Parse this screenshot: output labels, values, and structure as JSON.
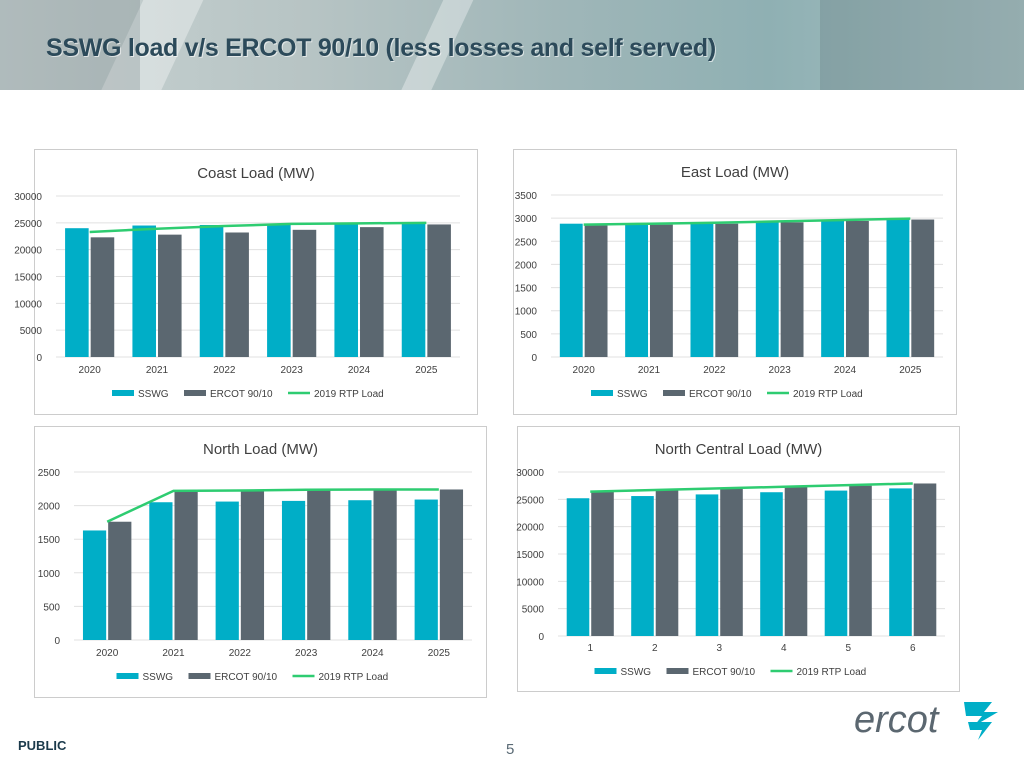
{
  "slide": {
    "title": "SSWG load v/s ERCOT 90/10 (less losses and self served)",
    "footer_label": "PUBLIC",
    "page_number": "5",
    "logo_text": "ercot"
  },
  "colors": {
    "sswg": "#00AEC7",
    "ercot": "#5B6770",
    "rtp": "#2ECC71",
    "title": "#2C4A5A"
  },
  "chart_data": [
    {
      "type": "bar",
      "title": "Coast Load (MW)",
      "categories": [
        "2020",
        "2021",
        "2022",
        "2023",
        "2024",
        "2025"
      ],
      "ylim": [
        0,
        30000
      ],
      "yticks": [
        0,
        5000,
        10000,
        15000,
        20000,
        25000,
        30000
      ],
      "grid": true,
      "legend_position": "bottom",
      "series": [
        {
          "name": "SSWG",
          "kind": "bar",
          "values": [
            24000,
            24500,
            24600,
            24700,
            24800,
            25000
          ]
        },
        {
          "name": "ERCOT 90/10",
          "kind": "bar",
          "values": [
            22300,
            22800,
            23200,
            23700,
            24200,
            24700
          ]
        },
        {
          "name": "2019 RTP Load",
          "kind": "line",
          "values": [
            23300,
            23900,
            24400,
            24800,
            24900,
            25000
          ]
        }
      ]
    },
    {
      "type": "bar",
      "title": "East Load (MW)",
      "categories": [
        "2020",
        "2021",
        "2022",
        "2023",
        "2024",
        "2025"
      ],
      "ylim": [
        0,
        3500
      ],
      "yticks": [
        0,
        500,
        1000,
        1500,
        2000,
        2500,
        3000,
        3500
      ],
      "grid": true,
      "legend_position": "bottom",
      "series": [
        {
          "name": "SSWG",
          "kind": "bar",
          "values": [
            2880,
            2890,
            2900,
            2930,
            2960,
            2990
          ]
        },
        {
          "name": "ERCOT 90/10",
          "kind": "bar",
          "values": [
            2840,
            2860,
            2880,
            2910,
            2940,
            2970
          ]
        },
        {
          "name": "2019 RTP Load",
          "kind": "line",
          "values": [
            2860,
            2880,
            2900,
            2930,
            2960,
            2990
          ]
        }
      ]
    },
    {
      "type": "bar",
      "title": "North Load (MW)",
      "categories": [
        "2020",
        "2021",
        "2022",
        "2023",
        "2024",
        "2025"
      ],
      "ylim": [
        0,
        2500
      ],
      "yticks": [
        0,
        500,
        1000,
        1500,
        2000,
        2500
      ],
      "grid": true,
      "legend_position": "bottom",
      "series": [
        {
          "name": "SSWG",
          "kind": "bar",
          "values": [
            1630,
            2050,
            2060,
            2070,
            2080,
            2090
          ]
        },
        {
          "name": "ERCOT 90/10",
          "kind": "bar",
          "values": [
            1760,
            2220,
            2220,
            2230,
            2235,
            2240
          ]
        },
        {
          "name": "2019 RTP Load",
          "kind": "line",
          "values": [
            1760,
            2220,
            2225,
            2235,
            2240,
            2240
          ]
        }
      ]
    },
    {
      "type": "bar",
      "title": "North Central Load (MW)",
      "categories": [
        "1",
        "2",
        "3",
        "4",
        "5",
        "6"
      ],
      "ylim": [
        0,
        30000
      ],
      "yticks": [
        0,
        5000,
        10000,
        15000,
        20000,
        25000,
        30000
      ],
      "grid": true,
      "legend_position": "bottom",
      "series": [
        {
          "name": "SSWG",
          "kind": "bar",
          "values": [
            25200,
            25600,
            25900,
            26300,
            26600,
            27000
          ]
        },
        {
          "name": "ERCOT 90/10",
          "kind": "bar",
          "values": [
            26400,
            26700,
            27000,
            27300,
            27500,
            27900
          ]
        },
        {
          "name": "2019 RTP Load",
          "kind": "line",
          "values": [
            26400,
            26700,
            27000,
            27300,
            27600,
            27900
          ]
        }
      ]
    }
  ]
}
